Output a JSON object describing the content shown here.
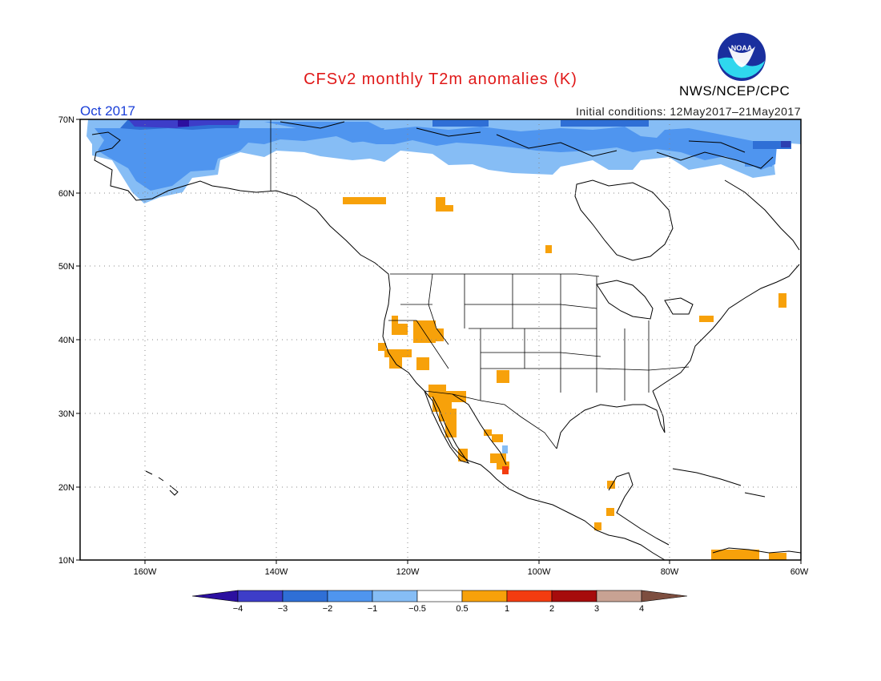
{
  "title": "CFSv2 monthly T2m anomalies (K)",
  "valid_month": "Oct 2017",
  "initial_conditions": "Initial conditions: 12May2017–21May2017",
  "agency": "NWS/NCEP/CPC",
  "logo_text": "NOAA",
  "map": {
    "lat_labels": [
      "70N",
      "60N",
      "50N",
      "40N",
      "30N",
      "20N",
      "10N"
    ],
    "lon_labels": [
      "160W",
      "140W",
      "120W",
      "100W",
      "80W",
      "60W"
    ]
  },
  "colorbar": {
    "labels": [
      "−4",
      "−3",
      "−2",
      "−1",
      "−0.5",
      "0.5",
      "1",
      "2",
      "3",
      "4"
    ],
    "colors": [
      "#2c10a0",
      "#3d3dc8",
      "#2f6fd6",
      "#4f95ef",
      "#86bdf5",
      "#ffffff",
      "#f7a10a",
      "#f33c10",
      "#a60c0c",
      "#c8a293",
      "#7d4e3f"
    ]
  }
}
